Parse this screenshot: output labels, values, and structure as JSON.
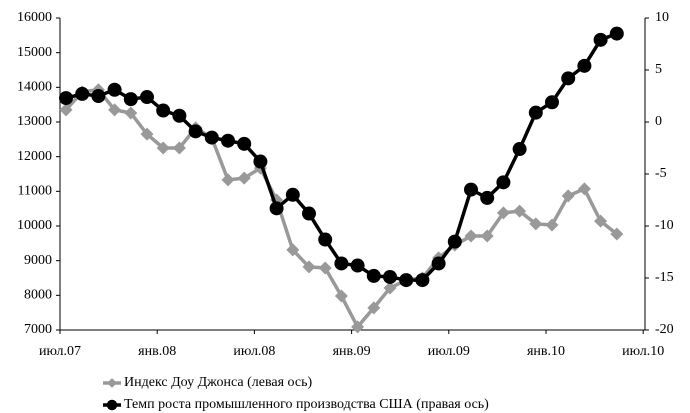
{
  "chart_data": {
    "type": "line",
    "categories": [
      "июл.07",
      null,
      null,
      null,
      null,
      null,
      "янв.08",
      null,
      null,
      null,
      null,
      null,
      "июл.08",
      null,
      null,
      null,
      null,
      null,
      "янв.09",
      null,
      null,
      null,
      null,
      null,
      "июл.09",
      null,
      null,
      null,
      null,
      null,
      "янв.10",
      null,
      null,
      null,
      null,
      null,
      "июл.10"
    ],
    "series": [
      {
        "name": "Индекс Доу Джонса (левая ось)",
        "color": "#999999",
        "marker": "diamond",
        "axis": "y",
        "values": [
          13350,
          13870,
          13930,
          13350,
          13260,
          12650,
          12250,
          12250,
          12830,
          12540,
          11330,
          11380,
          11670,
          10750,
          9310,
          8820,
          8790,
          7980,
          7090,
          7640,
          8210,
          8440,
          8500,
          9080,
          9450,
          9710,
          9710,
          10380,
          10430,
          10060,
          10030,
          10870,
          11070,
          10140,
          9770,
          null,
          null
        ]
      },
      {
        "name": "Темп роста промышленного производства США (правая ось)",
        "color": "#000000",
        "marker": "circle",
        "axis": "y2",
        "values": [
          2.3,
          2.7,
          2.5,
          3.1,
          2.2,
          2.4,
          1.1,
          0.6,
          -0.9,
          -1.5,
          -1.8,
          -2.1,
          -3.8,
          -8.3,
          -7.0,
          -8.8,
          -11.3,
          -13.6,
          -13.8,
          -14.8,
          -14.9,
          -15.2,
          -15.2,
          -13.6,
          -11.5,
          -6.5,
          -7.3,
          -5.8,
          -2.6,
          0.9,
          1.9,
          4.2,
          5.4,
          7.9,
          8.5,
          null,
          null
        ]
      }
    ],
    "ylim": [
      7000,
      16000
    ],
    "yticks": [
      7000,
      8000,
      9000,
      10000,
      11000,
      12000,
      13000,
      14000,
      15000,
      16000
    ],
    "y2lim": [
      -20,
      10
    ],
    "y2ticks": [
      -20,
      -15,
      -10,
      -5,
      0,
      5,
      10
    ],
    "legend": "bottom"
  }
}
